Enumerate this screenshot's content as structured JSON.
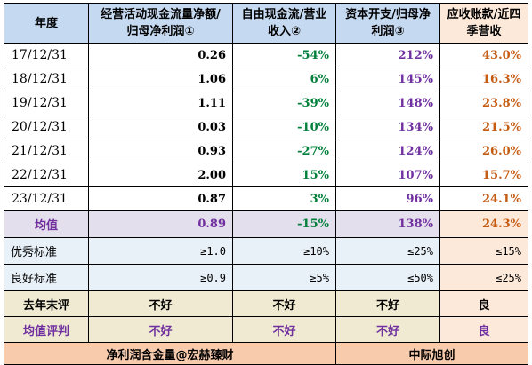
{
  "header": {
    "year": "年度",
    "col1": "经营活动现金流量净额/归母净利润①",
    "col2": "自由现金流/营业收入②",
    "col3": "资本开支/归母净利润③",
    "col4": "应收账款/近四季营收"
  },
  "rows": [
    {
      "year": "17/12/31",
      "c1": "0.26",
      "c2": "-54%",
      "c3": "212%",
      "c4": "43.0%"
    },
    {
      "year": "18/12/31",
      "c1": "1.06",
      "c2": "6%",
      "c3": "145%",
      "c4": "16.3%"
    },
    {
      "year": "19/12/31",
      "c1": "1.11",
      "c2": "-39%",
      "c3": "148%",
      "c4": "23.8%"
    },
    {
      "year": "20/12/31",
      "c1": "0.03",
      "c2": "-10%",
      "c3": "134%",
      "c4": "21.5%"
    },
    {
      "year": "21/12/31",
      "c1": "0.93",
      "c2": "-27%",
      "c3": "124%",
      "c4": "26.0%"
    },
    {
      "year": "22/12/31",
      "c1": "2.00",
      "c2": "15%",
      "c3": "107%",
      "c4": "15.7%"
    },
    {
      "year": "23/12/31",
      "c1": "0.87",
      "c2": "3%",
      "c3": "96%",
      "c4": "24.1%"
    }
  ],
  "average": {
    "label": "均值",
    "c1": "0.89",
    "c2": "-15%",
    "c3": "138%",
    "c4": "24.3%"
  },
  "excellent": {
    "label": "优秀标准",
    "c1": "≥1.0",
    "c2": "≥10%",
    "c3": "≤25%",
    "c4": "≤15%"
  },
  "good": {
    "label": "良好标准",
    "c1": "≥0.9",
    "c2": "≥5%",
    "c3": "≤50%",
    "c4": "≤25%"
  },
  "last_year_eval": {
    "label": "去年末评",
    "c1": "不好",
    "c2": "不好",
    "c3": "不好",
    "c4": "良"
  },
  "average_eval": {
    "label": "均值评判",
    "c1": "不好",
    "c2": "不好",
    "c3": "不好",
    "c4": "良"
  },
  "footer": {
    "left": "净利润含金量@宏赫臻财",
    "right": "中际旭创"
  },
  "colors": {
    "header_blue": "#c5d9f1",
    "header_orange": "#fde9d9",
    "avg_row": "#e4dfec",
    "standard_row": "#e8f0f8",
    "eval_row": "#f0ead2",
    "footer": "#f8cbad",
    "green_text": "#00803a",
    "purple_text": "#7030a0",
    "orange_text": "#c55a11"
  }
}
